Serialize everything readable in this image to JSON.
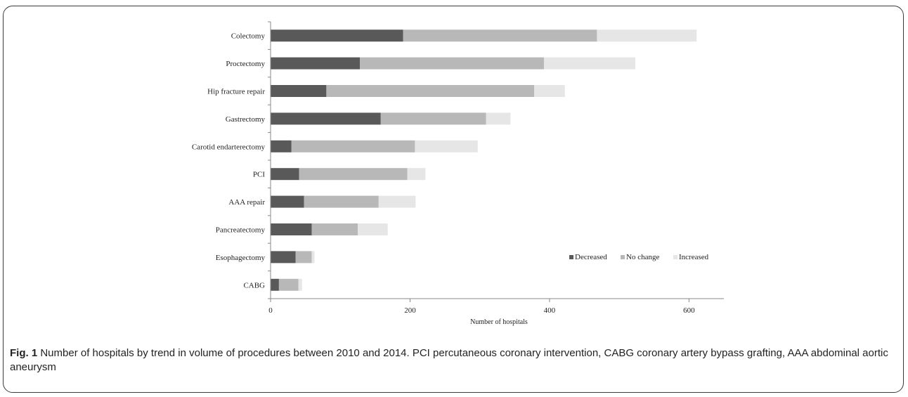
{
  "caption": {
    "label": "Fig. 1",
    "text": "Number of hospitals by trend in volume of procedures between 2010 and 2014. PCI percutaneous coronary intervention, CABG coronary artery bypass grafting, AAA abdominal aortic aneurysm"
  },
  "chart_data": {
    "type": "bar",
    "orientation": "horizontal",
    "stacked": true,
    "categories": [
      "Colectomy",
      "Proctectomy",
      "Hip fracture repair",
      "Gastrectomy",
      "Carotid endarterectomy",
      "PCI",
      "AAA repair",
      "Pancreatectomy",
      "Esophagectomy",
      "CABG"
    ],
    "series": [
      {
        "name": "Decreased",
        "color": "#595959",
        "values": [
          190,
          128,
          80,
          158,
          30,
          41,
          48,
          59,
          36,
          12
        ]
      },
      {
        "name": "No change",
        "color": "#b8b8b8",
        "values": [
          278,
          264,
          298,
          151,
          177,
          155,
          107,
          66,
          23,
          28
        ]
      },
      {
        "name": "Increased",
        "color": "#e6e6e6",
        "values": [
          143,
          131,
          44,
          35,
          90,
          26,
          53,
          43,
          4,
          5
        ]
      }
    ],
    "xlabel": "Number of hospitals",
    "ylabel": "",
    "xlim": [
      0,
      650
    ],
    "xticks": [
      0,
      200,
      400,
      600
    ],
    "legend_position": "lower-right",
    "grid": false
  }
}
